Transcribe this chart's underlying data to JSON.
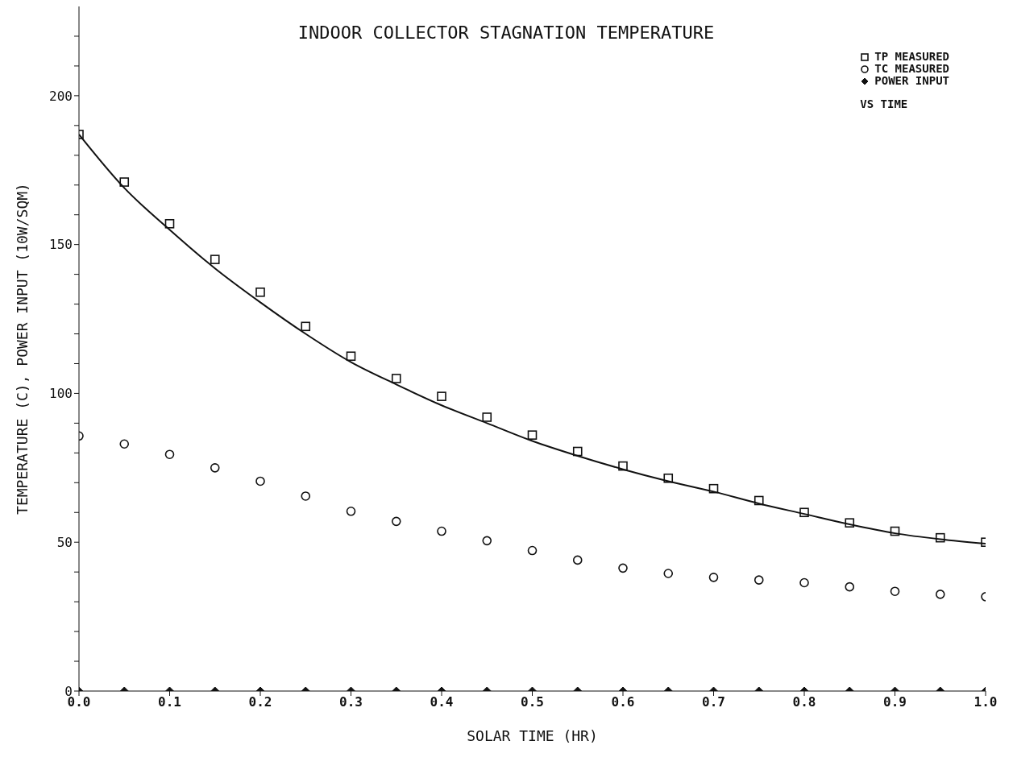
{
  "chart_data": {
    "type": "scatter",
    "title": "INDOOR COLLECTOR STAGNATION TEMPERATURE",
    "xlabel": "SOLAR TIME (HR)",
    "ylabel": "TEMPERATURE (C),  POWER INPUT (10W/SQM)",
    "annotations": [
      "VS TIME"
    ],
    "x": [
      0,
      0.05,
      0.1,
      0.15,
      0.2,
      0.25,
      0.3,
      0.35,
      0.4,
      0.45,
      0.5,
      0.55,
      0.6,
      0.65,
      0.7,
      0.75,
      0.8,
      0.85,
      0.9,
      0.95,
      1.0
    ],
    "series": [
      {
        "name": "TP MEASURED",
        "marker": "square",
        "color": "#111111",
        "values": [
          187,
          171,
          157,
          145,
          134,
          122.5,
          112.5,
          105,
          99,
          92,
          86,
          80.5,
          75.6,
          71.5,
          68,
          64,
          60,
          56.5,
          53.7,
          51.5,
          50
        ]
      },
      {
        "name": "TC MEASURED",
        "marker": "circle",
        "color": "#111111",
        "values": [
          85.7,
          83,
          79.5,
          75,
          70.5,
          65.5,
          60.4,
          57,
          53.7,
          50.5,
          47.2,
          44,
          41.3,
          39.5,
          38.2,
          37.3,
          36.4,
          35,
          33.5,
          32.5,
          31.7
        ]
      },
      {
        "name": "POWER INPUT",
        "marker": "diamond",
        "color": "#111111",
        "values": [
          0,
          0,
          0,
          0,
          0,
          0,
          0,
          0,
          0,
          0,
          0,
          0,
          0,
          0,
          0,
          0,
          0,
          0,
          0,
          0,
          0
        ]
      },
      {
        "type": "line",
        "marker": "none",
        "color": "#111111",
        "values": [
          187,
          169,
          155,
          142,
          130.6,
          120,
          110.5,
          103,
          96,
          90,
          84,
          79,
          74.5,
          70.5,
          67,
          63,
          59.5,
          56,
          53,
          51,
          49.5
        ]
      }
    ],
    "xlim": [
      0,
      1
    ],
    "xticks": [
      {
        "value": 0,
        "label": "0.0"
      },
      {
        "value": 0.1,
        "label": "0.1"
      },
      {
        "value": 0.2,
        "label": "0.2"
      },
      {
        "value": 0.3,
        "label": "0.3"
      },
      {
        "value": 0.4,
        "label": "0.4"
      },
      {
        "value": 0.5,
        "label": "0.5"
      },
      {
        "value": 0.6,
        "label": "0.6"
      },
      {
        "value": 0.7,
        "label": "0.7"
      },
      {
        "value": 0.8,
        "label": "0.8"
      },
      {
        "value": 0.9,
        "label": "0.9"
      },
      {
        "value": 1,
        "label": "1.0"
      }
    ],
    "ylim": [
      0,
      230
    ],
    "yticks": [
      0,
      {
        "value": 10,
        "label": null
      },
      {
        "value": 20,
        "label": null
      },
      {
        "value": 30,
        "label": null
      },
      {
        "value": 40,
        "label": null
      },
      50,
      {
        "value": 60,
        "label": null
      },
      {
        "value": 70,
        "label": null
      },
      {
        "value": 80,
        "label": null
      },
      {
        "value": 90,
        "label": null
      },
      100,
      {
        "value": 110,
        "label": null
      },
      {
        "value": 120,
        "label": null
      },
      {
        "value": 130,
        "label": null
      },
      {
        "value": 140,
        "label": null
      },
      150,
      {
        "value": 160,
        "label": null
      },
      {
        "value": 170,
        "label": null
      },
      {
        "value": 180,
        "label": null
      },
      {
        "value": 190,
        "label": null
      },
      200,
      {
        "value": 210,
        "label": null
      },
      {
        "value": 220,
        "label": null
      }
    ],
    "grid": false,
    "legend": "top right"
  }
}
